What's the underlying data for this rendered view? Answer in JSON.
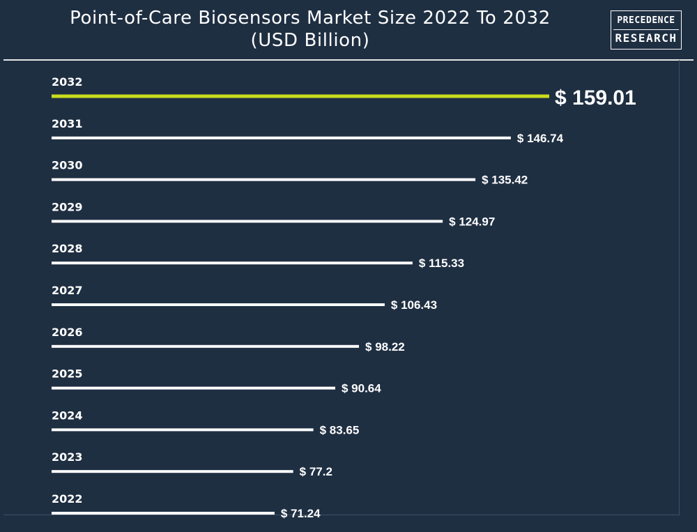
{
  "header": {
    "title_line1": "Point-of-Care Biosensors Market Size 2022 To 2032",
    "title_line2": "(USD Billion)",
    "logo_line1": "PRECEDENCE",
    "logo_line2": "RESEARCH"
  },
  "colors": {
    "background": "#1f2f42",
    "bar": "#ffffff",
    "highlight_bar": "#c8dc1e",
    "text": "#ffffff"
  },
  "chart_data": {
    "type": "bar",
    "orientation": "horizontal",
    "title": "Point-of-Care Biosensors Market Size 2022 To 2032 (USD Billion)",
    "categories": [
      "2032",
      "2031",
      "2030",
      "2029",
      "2028",
      "2027",
      "2026",
      "2025",
      "2024",
      "2023",
      "2022"
    ],
    "values": [
      159.01,
      146.74,
      135.42,
      124.97,
      115.33,
      106.43,
      98.22,
      90.64,
      83.65,
      77.2,
      71.24
    ],
    "value_labels": [
      "$ 159.01",
      "$ 146.74",
      "$ 135.42",
      "$ 124.97",
      "$ 115.33",
      "$ 106.43",
      "$ 98.22",
      "$ 90.64",
      "$ 83.65",
      "$ 77.2",
      "$ 71.24"
    ],
    "highlight_category": "2032",
    "xlim": [
      0,
      159.01
    ],
    "grid": false,
    "legend": "none"
  }
}
